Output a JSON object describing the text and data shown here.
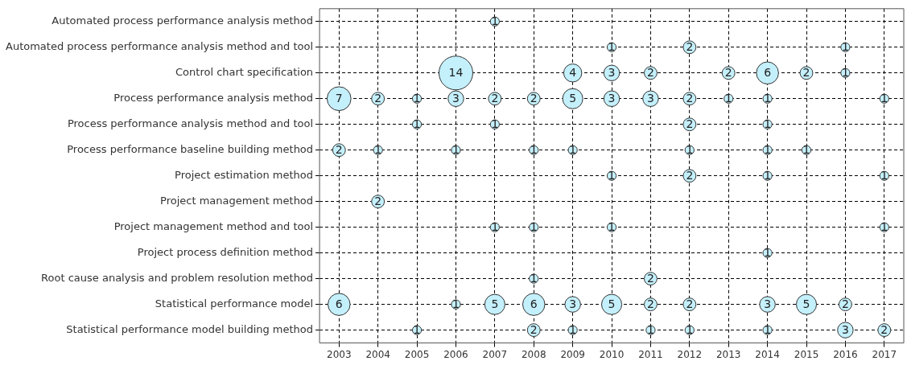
{
  "chart_data": {
    "type": "heatmap",
    "categories": [
      "2003",
      "2004",
      "2005",
      "2006",
      "2007",
      "2008",
      "2009",
      "2010",
      "2011",
      "2012",
      "2013",
      "2014",
      "2015",
      "2016",
      "2017"
    ],
    "y_categories": [
      "Automated process performance analysis method",
      "Automated process performance analysis method and tool",
      "Control chart specification",
      "Process performance analysis method",
      "Process performance analysis method and tool",
      "Process performance baseline building method",
      "Project estimation method",
      "Project management method",
      "Project management method and tool",
      "Project process definition method",
      "Root cause analysis and problem resolution method",
      "Statistical performance model",
      "Statistical performance model building method"
    ],
    "cells": [
      [
        null,
        null,
        null,
        null,
        1,
        null,
        null,
        null,
        null,
        null,
        null,
        null,
        null,
        null,
        null
      ],
      [
        null,
        null,
        null,
        null,
        null,
        null,
        null,
        1,
        null,
        2,
        null,
        null,
        null,
        1,
        null
      ],
      [
        null,
        null,
        null,
        14,
        null,
        null,
        4,
        3,
        2,
        null,
        2,
        6,
        2,
        1,
        null
      ],
      [
        7,
        2,
        1,
        3,
        2,
        2,
        5,
        3,
        3,
        2,
        1,
        1,
        null,
        null,
        1
      ],
      [
        null,
        null,
        1,
        null,
        1,
        null,
        null,
        null,
        null,
        2,
        null,
        1,
        null,
        null,
        null
      ],
      [
        2,
        1,
        null,
        1,
        null,
        1,
        1,
        null,
        null,
        1,
        null,
        1,
        1,
        null,
        null
      ],
      [
        null,
        null,
        null,
        null,
        null,
        null,
        null,
        1,
        null,
        2,
        null,
        1,
        null,
        null,
        1
      ],
      [
        null,
        2,
        null,
        null,
        null,
        null,
        null,
        null,
        null,
        null,
        null,
        null,
        null,
        null,
        null
      ],
      [
        null,
        null,
        null,
        null,
        1,
        1,
        null,
        1,
        null,
        null,
        null,
        null,
        null,
        null,
        1
      ],
      [
        null,
        null,
        null,
        null,
        null,
        null,
        null,
        null,
        null,
        null,
        null,
        1,
        null,
        null,
        null
      ],
      [
        null,
        null,
        null,
        null,
        null,
        1,
        null,
        null,
        2,
        null,
        null,
        null,
        null,
        null,
        null
      ],
      [
        6,
        null,
        null,
        1,
        5,
        6,
        3,
        5,
        2,
        2,
        null,
        3,
        5,
        2,
        null
      ],
      [
        null,
        null,
        1,
        null,
        null,
        2,
        1,
        null,
        1,
        1,
        null,
        1,
        null,
        3,
        2
      ]
    ],
    "color": "#c4f0fc",
    "data_labels": true,
    "grid": true,
    "line_style": "dashed",
    "legend": false
  }
}
